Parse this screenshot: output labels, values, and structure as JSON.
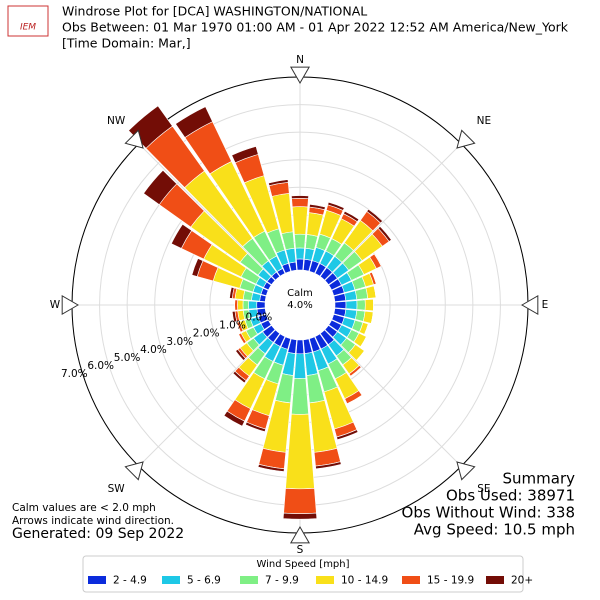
{
  "chart_data": {
    "type": "windrose",
    "logo_text": "IEM",
    "title": "Windrose Plot for [DCA] WASHINGTON/NATIONAL",
    "subtitle": "Obs Between: 01 Mar 1970 01:00 AM - 01 Apr 2022 12:52 AM America/New_York",
    "subtitle2": "[Time Domain: Mar,]",
    "compass_labels": [
      "N",
      "NE",
      "E",
      "SE",
      "S",
      "SW",
      "W",
      "NW"
    ],
    "x": [
      0,
      10,
      20,
      30,
      40,
      50,
      60,
      70,
      80,
      90,
      100,
      110,
      120,
      130,
      140,
      150,
      160,
      170,
      180,
      190,
      200,
      210,
      220,
      230,
      240,
      250,
      260,
      270,
      280,
      290,
      300,
      310,
      320,
      330,
      340,
      350
    ],
    "rlim": [
      0,
      7
    ],
    "rticks": [
      {
        "value": 0,
        "label": "0.0%"
      },
      {
        "value": 1,
        "label": "1.0%"
      },
      {
        "value": 2,
        "label": "2.0%"
      },
      {
        "value": 3,
        "label": "3.0%"
      },
      {
        "value": 4,
        "label": "4.0%"
      },
      {
        "value": 5,
        "label": "5.0%"
      },
      {
        "value": 6,
        "label": "6.0%"
      },
      {
        "value": 7,
        "label": "7.0%"
      }
    ],
    "calm": {
      "label": "Calm",
      "value": 4.0,
      "value_label": "4.0%"
    },
    "series": [
      {
        "name": "2 - 4.9",
        "color": "#0b2bdc",
        "values": [
          0.4,
          0.4,
          0.4,
          0.4,
          0.4,
          0.4,
          0.4,
          0.4,
          0.4,
          0.4,
          0.4,
          0.4,
          0.4,
          0.4,
          0.5,
          0.5,
          0.5,
          0.5,
          0.5,
          0.5,
          0.4,
          0.4,
          0.4,
          0.4,
          0.3,
          0.3,
          0.3,
          0.3,
          0.2,
          0.2,
          0.2,
          0.2,
          0.2,
          0.2,
          0.3,
          0.3
        ]
      },
      {
        "name": "5 - 6.9",
        "color": "#1ec8e6",
        "values": [
          0.4,
          0.4,
          0.5,
          0.5,
          0.5,
          0.5,
          0.4,
          0.4,
          0.4,
          0.4,
          0.4,
          0.4,
          0.4,
          0.4,
          0.5,
          0.6,
          0.7,
          0.8,
          0.9,
          0.8,
          0.6,
          0.6,
          0.5,
          0.4,
          0.3,
          0.3,
          0.3,
          0.3,
          0.3,
          0.3,
          0.3,
          0.4,
          0.5,
          0.5,
          0.5,
          0.5
        ]
      },
      {
        "name": "7 - 9.9",
        "color": "#7fef85",
        "values": [
          0.5,
          0.5,
          0.5,
          0.5,
          0.6,
          0.6,
          0.5,
          0.4,
          0.4,
          0.3,
          0.3,
          0.3,
          0.3,
          0.4,
          0.4,
          0.6,
          0.8,
          1.0,
          1.3,
          1.0,
          0.7,
          0.7,
          0.5,
          0.3,
          0.3,
          0.2,
          0.2,
          0.2,
          0.3,
          0.5,
          0.6,
          0.8,
          1.0,
          1.0,
          0.8,
          0.6
        ]
      },
      {
        "name": "10 - 14.9",
        "color": "#f9e01a",
        "values": [
          1.0,
          0.8,
          0.9,
          0.8,
          1.0,
          0.9,
          0.5,
          0.3,
          0.3,
          0.3,
          0.3,
          0.2,
          0.3,
          0.4,
          0.4,
          0.8,
          1.4,
          1.8,
          2.7,
          1.8,
          1.2,
          1.2,
          0.5,
          0.3,
          0.2,
          0.2,
          0.2,
          0.2,
          0.3,
          1.0,
          1.5,
          2.2,
          3.0,
          2.8,
          2.0,
          1.4
        ]
      },
      {
        "name": "15 - 19.9",
        "color": "#f04e16",
        "values": [
          0.3,
          0.2,
          0.2,
          0.2,
          0.4,
          0.3,
          0.2,
          0.1,
          0,
          0,
          0,
          0,
          0,
          0,
          0.1,
          0.2,
          0.3,
          0.5,
          0.9,
          0.6,
          0.5,
          0.5,
          0.2,
          0.1,
          0.1,
          0.1,
          0.1,
          0.1,
          0.1,
          0.6,
          0.9,
          1.4,
          2.0,
          1.6,
          0.8,
          0.4
        ]
      },
      {
        "name": "20+",
        "color": "#730d06",
        "values": [
          0.1,
          0.1,
          0.1,
          0.1,
          0.1,
          0.1,
          0,
          0,
          0,
          0,
          0,
          0,
          0,
          0,
          0,
          0,
          0.1,
          0.1,
          0.2,
          0.1,
          0.1,
          0.2,
          0.1,
          0.1,
          0,
          0,
          0.1,
          0,
          0.1,
          0.2,
          0.4,
          0.7,
          0.9,
          0.6,
          0.3,
          0.1
        ]
      }
    ],
    "legend_title": "Wind Speed [mph]",
    "summary": [
      "Summary",
      "Obs Used: 38971",
      "Obs Without Wind: 338",
      "Avg Speed: 10.5 mph"
    ],
    "notes": [
      "Calm values are < 2.0 mph",
      "Arrows indicate wind direction."
    ],
    "generated": "Generated: 09 Sep 2022"
  }
}
